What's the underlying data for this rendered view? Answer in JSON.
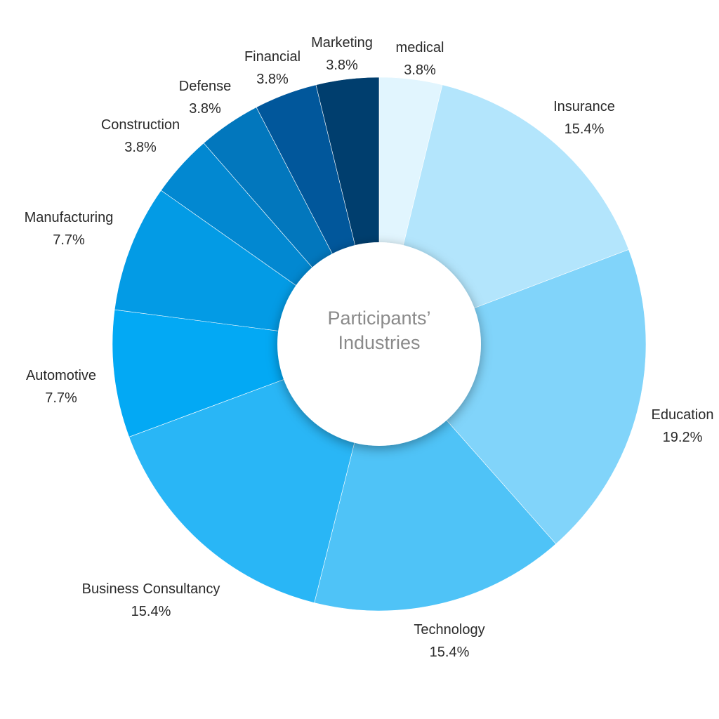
{
  "chart_data": {
    "type": "pie",
    "title": "Participants’ Industries",
    "title_lines": [
      "Participants’",
      "Industries"
    ],
    "start_angle_deg": 0,
    "direction": "clockwise",
    "slices": [
      {
        "label": "medical",
        "value": 3.8,
        "value_label": "3.8%",
        "color": "#E1F5FE"
      },
      {
        "label": "Insurance",
        "value": 15.4,
        "value_label": "15.4%",
        "color": "#B3E5FC"
      },
      {
        "label": "Education",
        "value": 19.2,
        "value_label": "19.2%",
        "color": "#81D4FA"
      },
      {
        "label": "Technology",
        "value": 15.4,
        "value_label": "15.4%",
        "color": "#4FC3F7"
      },
      {
        "label": "Business Consultancy",
        "value": 15.4,
        "value_label": "15.4%",
        "color": "#29B6F6"
      },
      {
        "label": "Automotive",
        "value": 7.7,
        "value_label": "7.7%",
        "color": "#03A9F4"
      },
      {
        "label": "Manufacturing",
        "value": 7.7,
        "value_label": "7.7%",
        "color": "#039BE5"
      },
      {
        "label": "Construction",
        "value": 3.8,
        "value_label": "3.8%",
        "color": "#0288D1"
      },
      {
        "label": "Defense",
        "value": 3.8,
        "value_label": "3.8%",
        "color": "#0277BD"
      },
      {
        "label": "Financial",
        "value": 3.8,
        "value_label": "3.8%",
        "color": "#01579B"
      },
      {
        "label": "Marketing",
        "value": 3.8,
        "value_label": "3.8%",
        "color": "#003E6E"
      }
    ],
    "legend": "none"
  }
}
